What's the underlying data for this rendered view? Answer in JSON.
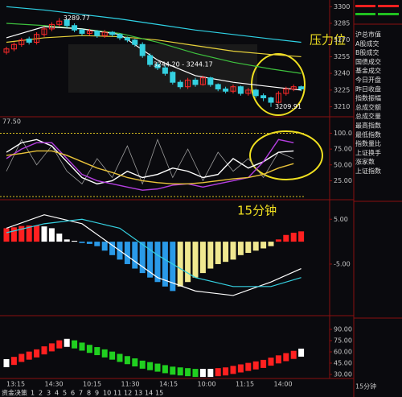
{
  "chart_data": [
    {
      "type": "candlestick",
      "annotations": [
        "3289.77",
        "3244.20 - 3244.17",
        "3209.91",
        "压力位"
      ],
      "candles": {
        "open": [
          3259,
          3262,
          3266,
          3271,
          3268,
          3275,
          3280,
          3284,
          3288,
          3283,
          3279,
          3276,
          3278,
          3274,
          3277,
          3275,
          3272,
          3270,
          3266,
          3256,
          3248,
          3245,
          3241,
          3232,
          3228,
          3234,
          3230,
          3236,
          3230,
          3226,
          3224,
          3228,
          3222,
          3225,
          3220,
          3218,
          3214,
          3222,
          3226,
          3228
        ],
        "close": [
          3262,
          3266,
          3270,
          3268,
          3275,
          3280,
          3284,
          3287,
          3283,
          3279,
          3276,
          3278,
          3274,
          3277,
          3275,
          3272,
          3270,
          3266,
          3256,
          3248,
          3245,
          3240,
          3232,
          3228,
          3234,
          3230,
          3236,
          3230,
          3226,
          3224,
          3228,
          3222,
          3225,
          3220,
          3218,
          3214,
          3222,
          3226,
          3228,
          3226
        ],
        "high": [
          3264,
          3268,
          3272,
          3273,
          3277,
          3282,
          3286,
          3289.77,
          3289,
          3285,
          3280,
          3280,
          3279,
          3279,
          3278,
          3276,
          3273,
          3271,
          3268,
          3258,
          3250,
          3247,
          3242,
          3234,
          3236,
          3236,
          3238,
          3237,
          3231,
          3228,
          3230,
          3229,
          3227,
          3226,
          3222,
          3219,
          3224,
          3228,
          3230,
          3229
        ],
        "low": [
          3257,
          3260,
          3264,
          3266,
          3266,
          3273,
          3278,
          3282,
          3281,
          3277,
          3274,
          3274,
          3272,
          3272,
          3273,
          3270,
          3268,
          3264,
          3254,
          3246,
          3243,
          3238,
          3230,
          3226,
          3226,
          3228,
          3229,
          3228,
          3224,
          3222,
          3222,
          3220,
          3220,
          3218,
          3215,
          3209.91,
          3213,
          3220,
          3224,
          3224
        ]
      },
      "up_color": "#ff2a2a",
      "down_color": "#35d0e0",
      "ma_x": [
        0,
        5,
        10,
        15,
        20,
        25,
        30,
        35,
        39
      ],
      "series": [
        {
          "color": "#2fd3e6",
          "values": [
            3300,
            3297,
            3293,
            3289,
            3284,
            3279,
            3275,
            3271,
            3268
          ]
        },
        {
          "color": "#e8d23a",
          "values": [
            3268,
            3272,
            3274,
            3273,
            3270,
            3265,
            3260,
            3257,
            3255
          ]
        },
        {
          "color": "#3ec23e",
          "values": [
            3285,
            3283,
            3280,
            3276,
            3268,
            3258,
            3250,
            3244,
            3240
          ]
        },
        {
          "color": "#ffffff",
          "values": [
            3272,
            3282,
            3280,
            3275,
            3252,
            3238,
            3232,
            3228,
            3225
          ]
        }
      ],
      "ylim": [
        3201,
        3306
      ],
      "yticks": [
        3300,
        3285,
        3270,
        3255,
        3240,
        3225,
        3210
      ]
    },
    {
      "type": "line",
      "label": "77.50",
      "x": [
        0,
        2,
        4,
        6,
        8,
        10,
        12,
        14,
        16,
        18,
        20,
        22,
        24,
        26,
        28,
        30,
        32,
        34,
        36,
        38
      ],
      "series": [
        {
          "color": "#9a9a9a",
          "values": [
            40,
            90,
            50,
            80,
            40,
            20,
            60,
            30,
            80,
            20,
            90,
            30,
            75,
            25,
            70,
            40,
            60,
            30,
            70,
            60
          ]
        },
        {
          "color": "#ffffff",
          "values": [
            70,
            85,
            90,
            80,
            55,
            30,
            20,
            25,
            40,
            30,
            35,
            45,
            40,
            30,
            35,
            60,
            45,
            55,
            70,
            72
          ]
        },
        {
          "color": "#b43ee0",
          "values": [
            60,
            75,
            85,
            85,
            60,
            35,
            25,
            20,
            15,
            10,
            12,
            18,
            20,
            15,
            20,
            25,
            30,
            55,
            90,
            85
          ]
        },
        {
          "color": "#e8c23a",
          "values": [
            65,
            68,
            72,
            72,
            65,
            55,
            45,
            38,
            30,
            25,
            22,
            20,
            20,
            22,
            25,
            28,
            30,
            35,
            45,
            52
          ]
        }
      ],
      "guide_lines": [
        100,
        0
      ],
      "guide_color": "#d8c020",
      "ylim": [
        -5,
        126
      ],
      "yticks": [
        {
          "value": 100,
          "label": "100.0"
        },
        {
          "value": 75,
          "label": "75.00"
        },
        {
          "value": 50,
          "label": "50.00"
        },
        {
          "value": 25,
          "label": "25.00"
        }
      ]
    },
    {
      "type": "macd",
      "annotation": "15分钟",
      "values": [
        3,
        3.2,
        3.5,
        3.6,
        3.6,
        3.4,
        3.0,
        1.8,
        0.5,
        0.2,
        -0.3,
        -0.5,
        -1,
        -2,
        -3,
        -4,
        -5,
        -6,
        -7,
        -8,
        -9,
        -10,
        -11,
        -10,
        -9,
        -8,
        -7,
        -6,
        -5,
        -4.5,
        -4,
        -3,
        -2.5,
        -2,
        -1.5,
        -1,
        0.5,
        1.5,
        2,
        2.3
      ],
      "colors": {
        "up": "#ff2020",
        "fade": "#ffffff",
        "down": "#2a9ae8",
        "recover": "#f0e890"
      },
      "line_x": [
        0,
        5,
        10,
        15,
        20,
        25,
        30,
        35,
        39
      ],
      "series": [
        {
          "color": "#ffffff",
          "values": [
            3,
            6,
            4,
            -2,
            -8,
            -11,
            -12,
            -9,
            -6
          ]
        },
        {
          "color": "#35d0e0",
          "values": [
            2,
            4,
            5,
            3,
            -3,
            -8,
            -10,
            -10,
            -8
          ]
        }
      ],
      "ylim": [
        -16.5,
        9
      ],
      "yticks": [
        {
          "value": 5,
          "label": "5.00"
        },
        {
          "value": -5,
          "label": "-5.00"
        }
      ]
    },
    {
      "type": "bar",
      "values": [
        45,
        48,
        52,
        55,
        58,
        62,
        66,
        70,
        72,
        70,
        67,
        64,
        61,
        58,
        55,
        52,
        49,
        46,
        43,
        41,
        39,
        37,
        35,
        34,
        33,
        32,
        32,
        32,
        33,
        34,
        36,
        38,
        40,
        42,
        44,
        47,
        50,
        53,
        56,
        59
      ],
      "colors": {
        "up": "#ff2020",
        "down": "#20d020",
        "flat": "#ffffff"
      },
      "ylim": [
        24.6,
        105
      ],
      "yticks": [
        {
          "value": 90,
          "label": "90.00"
        },
        {
          "value": 75,
          "label": "75.00"
        },
        {
          "value": 60,
          "label": "60.00"
        },
        {
          "value": 45,
          "label": "45.00"
        },
        {
          "value": 30,
          "label": "30.00"
        }
      ]
    }
  ],
  "time_labels": [
    "13:15",
    "14:30",
    "10:15",
    "11:30",
    "14:15",
    "10:00",
    "11:15",
    "14:00"
  ],
  "period_label": "15分钟",
  "tabs": [
    "资金决策",
    "1",
    "2",
    "3",
    "4",
    "5",
    "6",
    "7",
    "8",
    "9",
    "10",
    "11",
    "12",
    "13",
    "14",
    "15"
  ],
  "side_panel": [
    "沪总市值",
    "A股成交",
    "B股成交",
    "国债成交",
    "基金成交",
    "今日开盘",
    "昨日收盘",
    "指数振幅",
    "总成交额",
    "总成交量",
    "最高指数",
    "最低指数",
    "指数量比",
    "上证换手",
    "涨家数",
    "上证指数"
  ]
}
